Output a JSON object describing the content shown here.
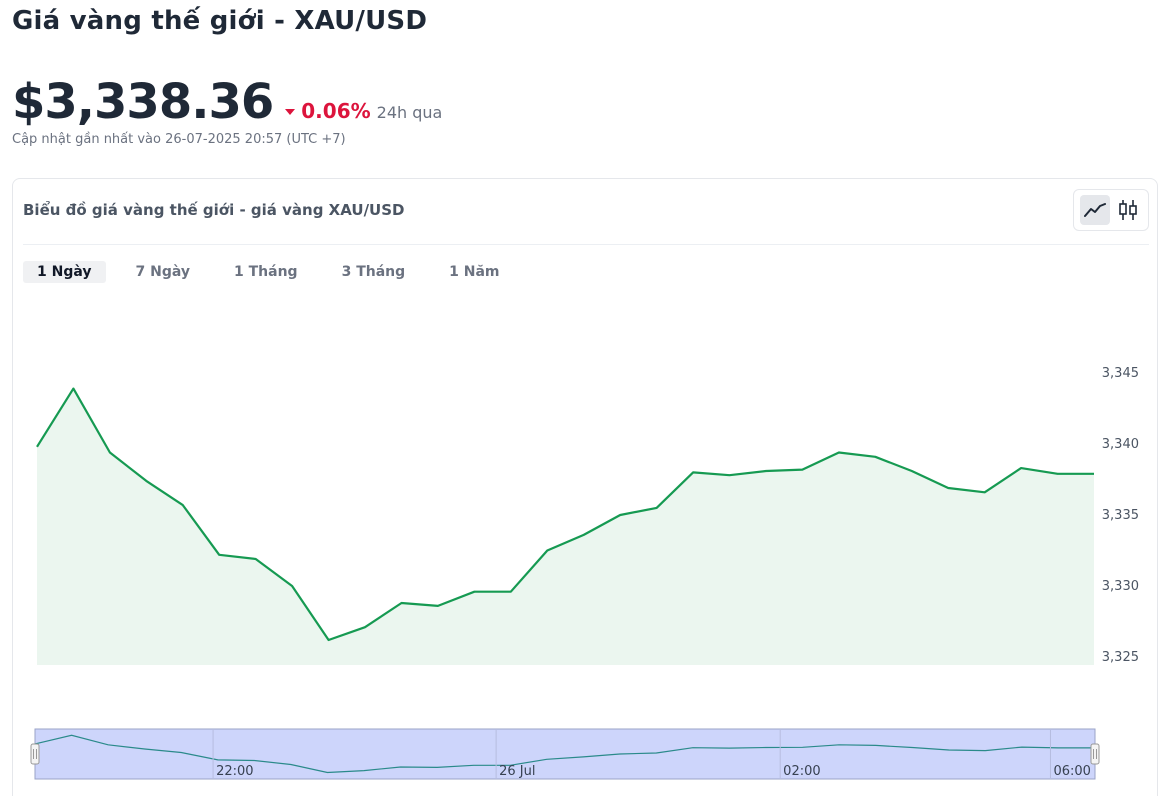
{
  "header": {
    "title": "Giá vàng thế giới - XAU/USD",
    "price": "$3,338.36",
    "change": "0.06%",
    "period": "24h qua",
    "updated": "Cập nhật gần nhất vào 26-07-2025 20:57 (UTC +7)"
  },
  "card": {
    "title": "Biểu đồ giá vàng thế giới - giá vàng XAU/USD",
    "modes": [
      {
        "icon": "line-chart-icon",
        "active": true
      },
      {
        "icon": "candlestick-chart-icon",
        "active": false
      }
    ],
    "tabs": [
      {
        "label": "1 Ngày",
        "active": true
      },
      {
        "label": "7 Ngày",
        "active": false
      },
      {
        "label": "1 Tháng",
        "active": false
      },
      {
        "label": "3 Tháng",
        "active": false
      },
      {
        "label": "1 Năm",
        "active": false
      }
    ]
  },
  "colors": {
    "line": "#169a52",
    "area": "#ebf6ef",
    "down": "#dc143c",
    "navigator_fill": "#cdd5fb",
    "navigator_line": "#2a8a8a"
  },
  "chart_data": {
    "type": "area",
    "ylim": [
      3325,
      3345
    ],
    "yticks": [
      "3,345",
      "3,340",
      "3,335",
      "3,330",
      "3,325"
    ],
    "navigator_labels": [
      "22:00",
      "26 Jul",
      "02:00",
      "06:00"
    ],
    "series": [
      {
        "values": [
          3339.8,
          3343.9,
          3339.4,
          3337.4,
          3335.7,
          3332.2,
          3331.9,
          3330.0,
          3326.2,
          3327.1,
          3328.8,
          3328.6,
          3329.6,
          3329.6,
          3332.5,
          3333.6,
          3335.0,
          3335.5,
          3338.0,
          3337.8,
          3338.1,
          3338.2,
          3339.4,
          3339.1,
          3338.1,
          3336.9,
          3336.6,
          3338.3,
          3337.9,
          3337.9
        ]
      }
    ]
  }
}
